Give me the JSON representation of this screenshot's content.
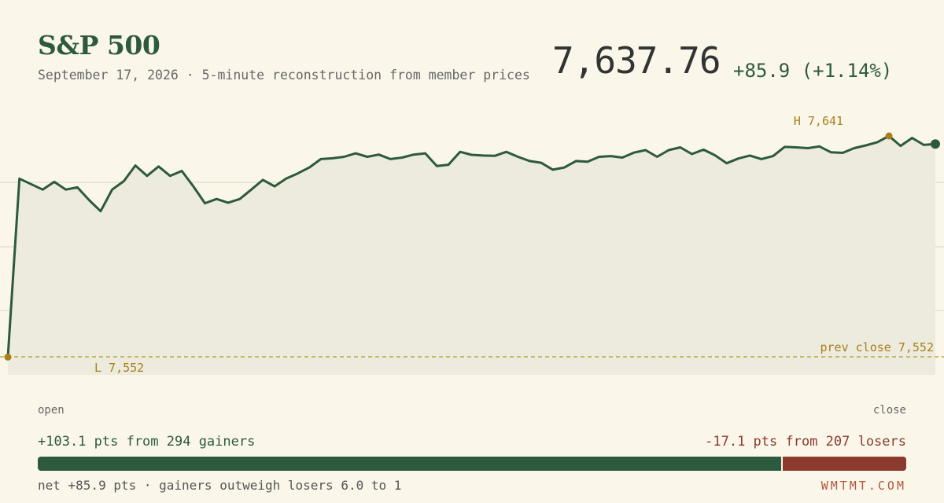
{
  "header": {
    "title": "S&P 500",
    "subtitle": "September 17, 2026 · 5-minute reconstruction from member prices",
    "price": "7,637.76",
    "change": "+85.9 (+1.14%)"
  },
  "chart_labels": {
    "high": "H 7,641",
    "low": "L 7,552",
    "prev_close": "prev close 7,552",
    "open": "open",
    "close": "close"
  },
  "breadth": {
    "gain_text": "+103.1 pts from 294 gainers",
    "loss_text": "-17.1 pts from 207 losers",
    "gain_pts": 103.1,
    "loss_pts": 17.1,
    "net_text": "net +85.9 pts · gainers outweigh losers 6.0 to 1"
  },
  "brand": "WMTMT.COM",
  "colors": {
    "line": "#2d5a3d",
    "marker": "#a87f1a",
    "loss": "#8b3a2e",
    "background": "#faf7ea"
  },
  "chart_data": {
    "type": "area",
    "title": "S&P 500",
    "prev_close": 7552,
    "high": 7641,
    "low": 7552,
    "last": 7637.76,
    "ylim": [
      7530,
      7660
    ],
    "values": [
      7551.9,
      7623.8,
      7621.6,
      7619.4,
      7622.5,
      7619.4,
      7620.3,
      7615.2,
      7610.7,
      7619.4,
      7622.8,
      7629.1,
      7624.9,
      7628.7,
      7624.9,
      7626.9,
      7620.7,
      7613.9,
      7615.6,
      7614.1,
      7615.6,
      7619.4,
      7623.3,
      7620.7,
      7623.8,
      7625.9,
      7628.3,
      7631.7,
      7632.0,
      7632.6,
      7634.0,
      7632.6,
      7633.5,
      7631.7,
      7632.3,
      7633.5,
      7634.0,
      7628.9,
      7629.4,
      7634.6,
      7633.4,
      7633.1,
      7633.0,
      7634.6,
      7632.6,
      7630.9,
      7630.2,
      7627.4,
      7628.3,
      7630.9,
      7630.6,
      7632.6,
      7632.9,
      7632.3,
      7634.3,
      7635.3,
      7632.6,
      7635.3,
      7636.4,
      7633.7,
      7635.5,
      7633.2,
      7630.0,
      7631.9,
      7633.1,
      7631.7,
      7632.9,
      7636.6,
      7636.4,
      7636.1,
      7636.8,
      7634.4,
      7634.2,
      7636.1,
      7637.2,
      7638.5,
      7641.0,
      7637.0,
      7640.2,
      7637.4,
      7637.76
    ]
  }
}
